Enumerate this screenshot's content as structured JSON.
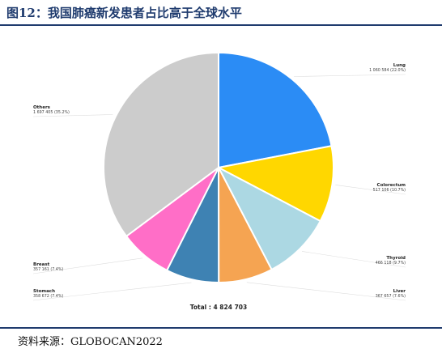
{
  "figure": {
    "title": "图12：我国肺癌新发患者占比高于全球水平",
    "source": "资料来源：GLOBOCAN2022"
  },
  "chart_data": {
    "type": "pie",
    "total_label": "Total : 4 824 703",
    "slices": [
      {
        "name": "Lung",
        "value_text": "1 060 584 (22.0%)",
        "value": 1060584,
        "percent": 22.0,
        "color": "#2b8cf5"
      },
      {
        "name": "Colorectum",
        "value_text": "517 106 (10.7%)",
        "value": 517106,
        "percent": 10.7,
        "color": "#ffd700"
      },
      {
        "name": "Thyroid",
        "value_text": "466 118 (9.7%)",
        "value": 466118,
        "percent": 9.7,
        "color": "#acd8e3"
      },
      {
        "name": "Liver",
        "value_text": "367 657 (7.6%)",
        "value": 367657,
        "percent": 7.6,
        "color": "#f5a452"
      },
      {
        "name": "Stomach",
        "value_text": "358 672 (7.4%)",
        "value": 358672,
        "percent": 7.4,
        "color": "#3e82b3"
      },
      {
        "name": "Breast",
        "value_text": "357 161 (7.4%)",
        "value": 357161,
        "percent": 7.4,
        "color": "#ff6ec7"
      },
      {
        "name": "Others",
        "value_text": "1 697 405 (35.2%)",
        "value": 1697405,
        "percent": 35.2,
        "color": "#cccccc"
      }
    ]
  }
}
